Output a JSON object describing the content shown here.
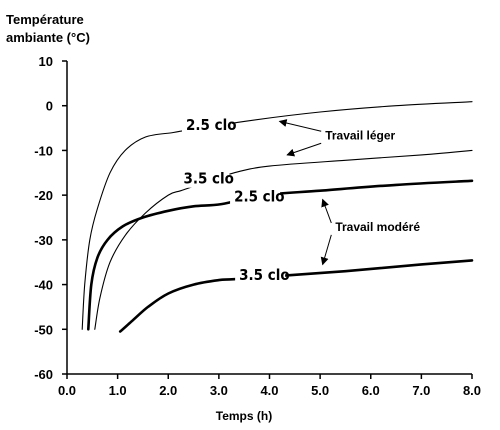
{
  "chart_data": {
    "type": "line",
    "ylabel_lines": [
      "Température",
      "ambiante (°C)"
    ],
    "xlabel": "Temps (h)",
    "xlim": [
      0,
      8
    ],
    "ylim": [
      -60,
      10
    ],
    "x_ticks": [
      "0.0",
      "1.0",
      "2.0",
      "3.0",
      "4.0",
      "5.0",
      "6.0",
      "7.0",
      "8.0"
    ],
    "y_ticks": [
      "10",
      "0",
      "-10",
      "-20",
      "-30",
      "-40",
      "-50",
      "-60"
    ],
    "series": [
      {
        "name": "2.5 clo",
        "group": "Travail léger",
        "weight": "light",
        "points": [
          [
            0.3,
            -50
          ],
          [
            0.35,
            -40
          ],
          [
            0.45,
            -30
          ],
          [
            0.6,
            -23
          ],
          [
            0.85,
            -15
          ],
          [
            1.15,
            -10
          ],
          [
            1.55,
            -7
          ],
          [
            2.1,
            -6
          ],
          [
            2.35,
            -5.5
          ],
          [
            2.75,
            -5
          ],
          [
            3.5,
            -3.5
          ],
          [
            5.0,
            -1.4
          ],
          [
            6.5,
            0
          ],
          [
            8.0,
            0.9
          ]
        ]
      },
      {
        "name": "3.5 clo",
        "group": "Travail léger",
        "weight": "light",
        "points": [
          [
            0.55,
            -50
          ],
          [
            0.65,
            -43
          ],
          [
            0.85,
            -35
          ],
          [
            1.15,
            -29
          ],
          [
            1.55,
            -24
          ],
          [
            2.0,
            -20
          ],
          [
            2.25,
            -19
          ],
          [
            2.65,
            -17.5
          ],
          [
            3.3,
            -15
          ],
          [
            4.0,
            -13.5
          ],
          [
            5.5,
            -12.2
          ],
          [
            7.0,
            -11
          ],
          [
            8.0,
            -10
          ]
        ]
      },
      {
        "name": "2.5 clo",
        "group": "Travail modéré",
        "weight": "heavy",
        "points": [
          [
            0.42,
            -50
          ],
          [
            0.48,
            -40
          ],
          [
            0.6,
            -34
          ],
          [
            0.8,
            -30
          ],
          [
            1.1,
            -27
          ],
          [
            1.5,
            -25
          ],
          [
            2.0,
            -23.5
          ],
          [
            2.5,
            -22.5
          ],
          [
            3.05,
            -22
          ],
          [
            3.9,
            -20
          ],
          [
            5.0,
            -19
          ],
          [
            6.5,
            -17.7
          ],
          [
            8.0,
            -16.8
          ]
        ]
      },
      {
        "name": "3.5 clo",
        "group": "Travail modéré",
        "weight": "heavy",
        "points": [
          [
            1.05,
            -50.5
          ],
          [
            1.3,
            -48
          ],
          [
            1.6,
            -45
          ],
          [
            2.0,
            -42
          ],
          [
            2.5,
            -40
          ],
          [
            3.0,
            -39
          ],
          [
            3.3,
            -38.8
          ],
          [
            4.3,
            -38
          ],
          [
            5.5,
            -37
          ],
          [
            7.0,
            -35.5
          ],
          [
            8.0,
            -34.6
          ]
        ]
      }
    ],
    "curve_labels": [
      {
        "text": "2.5 clo",
        "x": 2.35,
        "y": -5
      },
      {
        "text": "3.5 clo",
        "x": 2.3,
        "y": -17
      },
      {
        "text": "2.5 clo",
        "x": 3.3,
        "y": -21
      },
      {
        "text": "3.5 clo",
        "x": 3.4,
        "y": -38.5
      }
    ],
    "annotations": [
      {
        "text": "Travail léger",
        "x": 5.1,
        "y": -7.5,
        "arrows_to": [
          [
            4.2,
            -3.5
          ],
          [
            4.35,
            -11
          ]
        ]
      },
      {
        "text": "Travail modéré",
        "x": 5.3,
        "y": -28,
        "arrows_to": [
          [
            5.05,
            -21
          ],
          [
            5.05,
            -35.5
          ]
        ]
      }
    ]
  }
}
